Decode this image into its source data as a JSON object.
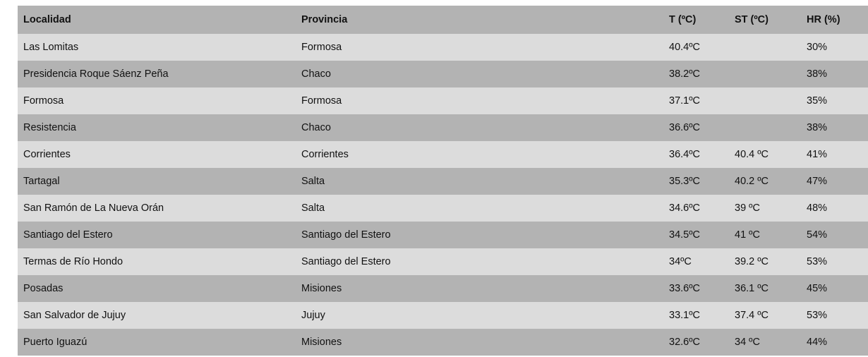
{
  "table": {
    "headers": [
      "Localidad",
      "Provincia",
      "T (ºC)",
      "ST (ºC)",
      "HR (%)"
    ],
    "rows": [
      [
        "Las Lomitas",
        "Formosa",
        "40.4ºC",
        "",
        "30%"
      ],
      [
        "Presidencia Roque Sáenz Peña",
        "Chaco",
        "38.2ºC",
        "",
        "38%"
      ],
      [
        "Formosa",
        "Formosa",
        "37.1ºC",
        "",
        "35%"
      ],
      [
        "Resistencia",
        "Chaco",
        "36.6ºC",
        "",
        "38%"
      ],
      [
        "Corrientes",
        "Corrientes",
        "36.4ºC",
        "40.4 ºC",
        "41%"
      ],
      [
        "Tartagal",
        "Salta",
        "35.3ºC",
        "40.2 ºC",
        "47%"
      ],
      [
        "San Ramón de La Nueva Orán",
        "Salta",
        "34.6ºC",
        "39 ºC",
        "48%"
      ],
      [
        "Santiago del Estero",
        "Santiago del Estero",
        "34.5ºC",
        "41 ºC",
        "54%"
      ],
      [
        "Termas de Río Hondo",
        "Santiago del Estero",
        "34ºC",
        "39.2 ºC",
        "53%"
      ],
      [
        "Posadas",
        "Misiones",
        "33.6ºC",
        "36.1 ºC",
        "45%"
      ],
      [
        "San Salvador de Jujuy",
        "Jujuy",
        "33.1ºC",
        "37.4 ºC",
        "53%"
      ],
      [
        "Puerto Iguazú",
        "Misiones",
        "32.6ºC",
        "34 ºC",
        "44%"
      ]
    ]
  },
  "colors": {
    "header": "#b3b3b3",
    "row_light": "#dcdcdc",
    "row_dark": "#b3b3b3"
  }
}
